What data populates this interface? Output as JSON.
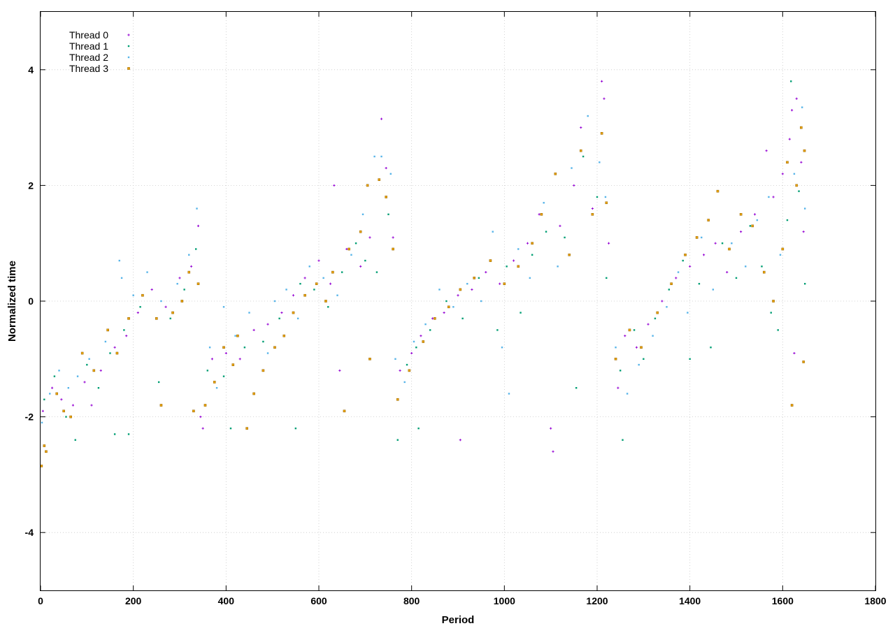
{
  "chart_data": {
    "type": "scatter",
    "title": "",
    "xlabel": "Period",
    "ylabel": "Normalized time",
    "xlim": [
      0,
      1800
    ],
    "ylim": [
      -5,
      5
    ],
    "grid": true,
    "legend_position": "top-left",
    "x_ticks": [
      0,
      200,
      400,
      600,
      800,
      1000,
      1200,
      1400,
      1600,
      1800
    ],
    "x_tick_labels": [
      "0",
      "200",
      "400",
      "600",
      "800",
      "1000",
      "1200",
      "1400",
      "1600",
      "1800"
    ],
    "y_ticks": [
      -4,
      -2,
      0,
      2,
      4
    ],
    "y_tick_labels": [
      "-4",
      "-2",
      "0",
      "2",
      "4"
    ],
    "series": [
      {
        "name": "Thread 0",
        "color": "#9400d3",
        "marker": "plus",
        "points": [
          [
            5,
            -1.9
          ],
          [
            25,
            -1.5
          ],
          [
            45,
            -1.7
          ],
          [
            70,
            -1.8
          ],
          [
            95,
            -1.4
          ],
          [
            110,
            -1.8
          ],
          [
            130,
            -1.2
          ],
          [
            160,
            -0.8
          ],
          [
            185,
            -0.6
          ],
          [
            210,
            -0.2
          ],
          [
            240,
            0.2
          ],
          [
            270,
            -0.1
          ],
          [
            300,
            0.4
          ],
          [
            325,
            0.6
          ],
          [
            340,
            1.3
          ],
          [
            345,
            -2.0
          ],
          [
            350,
            -2.2
          ],
          [
            370,
            -1.0
          ],
          [
            400,
            -0.9
          ],
          [
            430,
            -1.0
          ],
          [
            460,
            -0.5
          ],
          [
            490,
            -0.4
          ],
          [
            520,
            -0.2
          ],
          [
            545,
            0.1
          ],
          [
            570,
            0.4
          ],
          [
            600,
            0.7
          ],
          [
            625,
            0.3
          ],
          [
            645,
            -1.2
          ],
          [
            633,
            2.0
          ],
          [
            660,
            0.9
          ],
          [
            690,
            0.6
          ],
          [
            710,
            1.1
          ],
          [
            735,
            3.15
          ],
          [
            745,
            2.3
          ],
          [
            760,
            1.1
          ],
          [
            775,
            -1.2
          ],
          [
            800,
            -0.9
          ],
          [
            820,
            -0.6
          ],
          [
            845,
            -0.3
          ],
          [
            870,
            -0.2
          ],
          [
            900,
            0.1
          ],
          [
            905,
            -2.4
          ],
          [
            930,
            0.2
          ],
          [
            960,
            0.5
          ],
          [
            990,
            0.3
          ],
          [
            1020,
            0.7
          ],
          [
            1050,
            1.0
          ],
          [
            1075,
            1.5
          ],
          [
            1100,
            -2.2
          ],
          [
            1105,
            -2.6
          ],
          [
            1120,
            1.3
          ],
          [
            1150,
            2.0
          ],
          [
            1165,
            3.0
          ],
          [
            1190,
            1.6
          ],
          [
            1210,
            3.8
          ],
          [
            1215,
            3.5
          ],
          [
            1225,
            1.0
          ],
          [
            1245,
            -1.5
          ],
          [
            1260,
            -0.6
          ],
          [
            1285,
            -0.8
          ],
          [
            1310,
            -0.4
          ],
          [
            1340,
            0.0
          ],
          [
            1370,
            0.4
          ],
          [
            1400,
            0.6
          ],
          [
            1430,
            0.8
          ],
          [
            1455,
            1.0
          ],
          [
            1480,
            0.5
          ],
          [
            1510,
            1.2
          ],
          [
            1540,
            1.5
          ],
          [
            1565,
            2.6
          ],
          [
            1580,
            1.8
          ],
          [
            1600,
            2.2
          ],
          [
            1615,
            2.8
          ],
          [
            1620,
            3.3
          ],
          [
            1630,
            3.5
          ],
          [
            1640,
            2.4
          ],
          [
            1645,
            1.2
          ],
          [
            1625,
            -0.9
          ]
        ]
      },
      {
        "name": "Thread 1",
        "color": "#009e73",
        "marker": "square",
        "points": [
          [
            8,
            -1.7
          ],
          [
            30,
            -1.3
          ],
          [
            55,
            -2.0
          ],
          [
            75,
            -2.4
          ],
          [
            100,
            -1.1
          ],
          [
            125,
            -1.5
          ],
          [
            150,
            -0.9
          ],
          [
            160,
            -2.3
          ],
          [
            180,
            -0.5
          ],
          [
            190,
            -2.3
          ],
          [
            215,
            -0.1
          ],
          [
            255,
            -1.4
          ],
          [
            280,
            -0.3
          ],
          [
            310,
            0.2
          ],
          [
            335,
            0.9
          ],
          [
            360,
            -1.2
          ],
          [
            395,
            -1.3
          ],
          [
            410,
            -2.2
          ],
          [
            440,
            -0.8
          ],
          [
            480,
            -0.7
          ],
          [
            515,
            -0.3
          ],
          [
            550,
            -2.2
          ],
          [
            560,
            0.3
          ],
          [
            590,
            0.2
          ],
          [
            620,
            -0.1
          ],
          [
            650,
            0.5
          ],
          [
            680,
            1.0
          ],
          [
            700,
            0.7
          ],
          [
            725,
            0.5
          ],
          [
            750,
            1.5
          ],
          [
            770,
            -2.4
          ],
          [
            790,
            -1.1
          ],
          [
            810,
            -0.8
          ],
          [
            815,
            -2.2
          ],
          [
            840,
            -0.5
          ],
          [
            875,
            0.0
          ],
          [
            910,
            -0.3
          ],
          [
            945,
            0.4
          ],
          [
            985,
            -0.5
          ],
          [
            1005,
            0.6
          ],
          [
            1035,
            -0.2
          ],
          [
            1060,
            0.8
          ],
          [
            1090,
            1.2
          ],
          [
            1130,
            1.1
          ],
          [
            1155,
            -1.5
          ],
          [
            1170,
            2.5
          ],
          [
            1200,
            1.8
          ],
          [
            1220,
            0.4
          ],
          [
            1250,
            -1.2
          ],
          [
            1255,
            -2.4
          ],
          [
            1280,
            -0.5
          ],
          [
            1300,
            -1.0
          ],
          [
            1325,
            -0.3
          ],
          [
            1355,
            0.2
          ],
          [
            1385,
            0.7
          ],
          [
            1400,
            -1.0
          ],
          [
            1420,
            0.3
          ],
          [
            1445,
            -0.8
          ],
          [
            1470,
            1.0
          ],
          [
            1500,
            0.4
          ],
          [
            1530,
            1.3
          ],
          [
            1555,
            0.6
          ],
          [
            1575,
            -0.2
          ],
          [
            1590,
            -0.5
          ],
          [
            1610,
            1.4
          ],
          [
            1618,
            3.8
          ],
          [
            1635,
            1.9
          ],
          [
            1648,
            0.3
          ]
        ]
      },
      {
        "name": "Thread 2",
        "color": "#56b4e9",
        "marker": "square",
        "points": [
          [
            3,
            -2.1
          ],
          [
            20,
            -1.6
          ],
          [
            40,
            -1.2
          ],
          [
            60,
            -1.5
          ],
          [
            80,
            -1.3
          ],
          [
            105,
            -1.0
          ],
          [
            140,
            -0.7
          ],
          [
            170,
            0.7
          ],
          [
            175,
            0.4
          ],
          [
            200,
            0.1
          ],
          [
            230,
            0.5
          ],
          [
            260,
            0.0
          ],
          [
            295,
            0.3
          ],
          [
            320,
            0.8
          ],
          [
            337,
            1.6
          ],
          [
            365,
            -0.8
          ],
          [
            380,
            -1.5
          ],
          [
            395,
            -0.1
          ],
          [
            420,
            -0.6
          ],
          [
            450,
            -0.2
          ],
          [
            490,
            -0.9
          ],
          [
            505,
            0.0
          ],
          [
            530,
            0.2
          ],
          [
            555,
            -0.3
          ],
          [
            580,
            0.6
          ],
          [
            610,
            0.4
          ],
          [
            640,
            0.1
          ],
          [
            670,
            0.8
          ],
          [
            695,
            1.5
          ],
          [
            720,
            2.5
          ],
          [
            735,
            2.5
          ],
          [
            755,
            2.2
          ],
          [
            765,
            -1.0
          ],
          [
            785,
            -1.4
          ],
          [
            805,
            -0.7
          ],
          [
            830,
            -0.4
          ],
          [
            860,
            0.2
          ],
          [
            890,
            -0.1
          ],
          [
            920,
            0.3
          ],
          [
            950,
            0.0
          ],
          [
            975,
            1.2
          ],
          [
            995,
            -0.8
          ],
          [
            1010,
            -1.6
          ],
          [
            1030,
            0.9
          ],
          [
            1055,
            0.4
          ],
          [
            1085,
            1.7
          ],
          [
            1115,
            0.6
          ],
          [
            1145,
            2.3
          ],
          [
            1180,
            3.2
          ],
          [
            1205,
            2.4
          ],
          [
            1218,
            1.8
          ],
          [
            1240,
            -0.8
          ],
          [
            1265,
            -1.6
          ],
          [
            1290,
            -1.1
          ],
          [
            1320,
            -0.6
          ],
          [
            1350,
            -0.1
          ],
          [
            1375,
            0.5
          ],
          [
            1395,
            -0.2
          ],
          [
            1425,
            1.1
          ],
          [
            1450,
            0.2
          ],
          [
            1490,
            1.0
          ],
          [
            1520,
            0.6
          ],
          [
            1545,
            1.4
          ],
          [
            1570,
            1.8
          ],
          [
            1595,
            0.8
          ],
          [
            1625,
            2.2
          ],
          [
            1642,
            3.35
          ],
          [
            1648,
            1.6
          ]
        ]
      },
      {
        "name": "Thread 3",
        "color": "#e69f00",
        "marker": "square",
        "points": [
          [
            2,
            -2.85
          ],
          [
            8,
            -2.5
          ],
          [
            12,
            -2.6
          ],
          [
            35,
            -1.6
          ],
          [
            50,
            -1.9
          ],
          [
            65,
            -2.0
          ],
          [
            90,
            -0.9
          ],
          [
            115,
            -1.2
          ],
          [
            145,
            -0.5
          ],
          [
            165,
            -0.9
          ],
          [
            190,
            -0.3
          ],
          [
            220,
            0.1
          ],
          [
            250,
            -0.3
          ],
          [
            260,
            -1.8
          ],
          [
            285,
            -0.2
          ],
          [
            305,
            0.0
          ],
          [
            320,
            0.5
          ],
          [
            330,
            -1.9
          ],
          [
            340,
            0.3
          ],
          [
            355,
            -1.8
          ],
          [
            375,
            -1.4
          ],
          [
            395,
            -0.8
          ],
          [
            415,
            -1.1
          ],
          [
            425,
            -0.6
          ],
          [
            445,
            -2.2
          ],
          [
            460,
            -1.6
          ],
          [
            480,
            -1.2
          ],
          [
            505,
            -0.8
          ],
          [
            525,
            -0.6
          ],
          [
            545,
            -0.2
          ],
          [
            570,
            0.1
          ],
          [
            595,
            0.3
          ],
          [
            615,
            0.0
          ],
          [
            630,
            0.5
          ],
          [
            655,
            -1.9
          ],
          [
            665,
            0.9
          ],
          [
            690,
            1.2
          ],
          [
            705,
            2.0
          ],
          [
            710,
            -1.0
          ],
          [
            730,
            2.1
          ],
          [
            745,
            1.8
          ],
          [
            760,
            0.9
          ],
          [
            770,
            -1.7
          ],
          [
            795,
            -1.2
          ],
          [
            825,
            -0.7
          ],
          [
            850,
            -0.3
          ],
          [
            880,
            -0.1
          ],
          [
            905,
            0.2
          ],
          [
            935,
            0.4
          ],
          [
            970,
            0.7
          ],
          [
            1000,
            0.3
          ],
          [
            1030,
            0.6
          ],
          [
            1060,
            1.0
          ],
          [
            1080,
            1.5
          ],
          [
            1110,
            2.2
          ],
          [
            1140,
            0.8
          ],
          [
            1165,
            2.6
          ],
          [
            1190,
            1.5
          ],
          [
            1210,
            2.9
          ],
          [
            1220,
            1.7
          ],
          [
            1240,
            -1.0
          ],
          [
            1270,
            -0.5
          ],
          [
            1295,
            -0.8
          ],
          [
            1330,
            -0.2
          ],
          [
            1360,
            0.3
          ],
          [
            1390,
            0.8
          ],
          [
            1415,
            1.1
          ],
          [
            1440,
            1.4
          ],
          [
            1460,
            1.9
          ],
          [
            1485,
            0.9
          ],
          [
            1510,
            1.5
          ],
          [
            1535,
            1.3
          ],
          [
            1560,
            0.5
          ],
          [
            1580,
            0.0
          ],
          [
            1600,
            0.9
          ],
          [
            1610,
            2.4
          ],
          [
            1620,
            -1.8
          ],
          [
            1630,
            2.0
          ],
          [
            1640,
            3.0
          ],
          [
            1645,
            -1.05
          ],
          [
            1647,
            2.6
          ]
        ]
      }
    ]
  }
}
